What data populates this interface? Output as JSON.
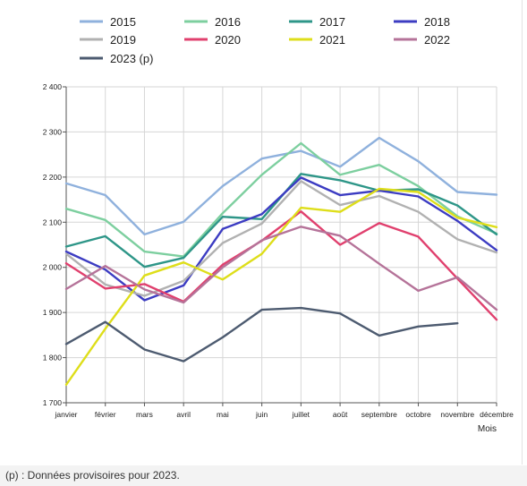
{
  "footnote": "(p) : Données provisoires pour 2023.",
  "chart_data": {
    "type": "line",
    "title": "",
    "xlabel": "Mois",
    "ylabel": "",
    "categories": [
      "janvier",
      "février",
      "mars",
      "avril",
      "mai",
      "juin",
      "juillet",
      "août",
      "septembre",
      "octobre",
      "novembre",
      "décembre"
    ],
    "ylim": [
      1700,
      2400
    ],
    "yticks": [
      1700,
      1800,
      1900,
      2000,
      2100,
      2200,
      2300,
      2400
    ],
    "ytick_labels": [
      "1 700",
      "1 800",
      "1 900",
      "2 000",
      "2 100",
      "2 200",
      "2 300",
      "2 400"
    ],
    "grid": true,
    "legend_position": "top",
    "series": [
      {
        "name": "2015",
        "color": "#8fb1dd",
        "values": [
          2186,
          2160,
          2073,
          2101,
          2180,
          2241,
          2258,
          2223,
          2287,
          2235,
          2167,
          2161
        ]
      },
      {
        "name": "2016",
        "color": "#7dcf9f",
        "values": [
          2130,
          2105,
          2035,
          2024,
          2120,
          2205,
          2275,
          2205,
          2227,
          2180,
          2113,
          2075
        ]
      },
      {
        "name": "2017",
        "color": "#2e9688",
        "values": [
          2046,
          2069,
          2001,
          2021,
          2112,
          2107,
          2207,
          2193,
          2170,
          2173,
          2137,
          2073
        ]
      },
      {
        "name": "2018",
        "color": "#3c3cc2",
        "values": [
          2035,
          1995,
          1927,
          1960,
          2085,
          2118,
          2199,
          2160,
          2170,
          2157,
          2103,
          2038
        ]
      },
      {
        "name": "2019",
        "color": "#b1b1b1",
        "values": [
          2030,
          1962,
          1937,
          1970,
          2054,
          2097,
          2191,
          2138,
          2158,
          2123,
          2062,
          2033
        ]
      },
      {
        "name": "2020",
        "color": "#e0406e",
        "values": [
          2009,
          1953,
          1963,
          1924,
          2006,
          2059,
          2124,
          2050,
          2098,
          2068,
          1975,
          1884
        ]
      },
      {
        "name": "2021",
        "color": "#dede1a",
        "values": [
          1740,
          1864,
          1982,
          2011,
          1973,
          2030,
          2132,
          2123,
          2174,
          2167,
          2110,
          2089
        ]
      },
      {
        "name": "2022",
        "color": "#b57399",
        "values": [
          1952,
          2003,
          1951,
          1922,
          2000,
          2060,
          2090,
          2070,
          2008,
          1948,
          1978,
          1906
        ]
      },
      {
        "name": "2023 (p)",
        "color": "#4d5b70",
        "values": [
          1830,
          1879,
          1818,
          1792,
          1845,
          1906,
          1910,
          1898,
          1849,
          1869,
          1876,
          null
        ]
      }
    ]
  }
}
